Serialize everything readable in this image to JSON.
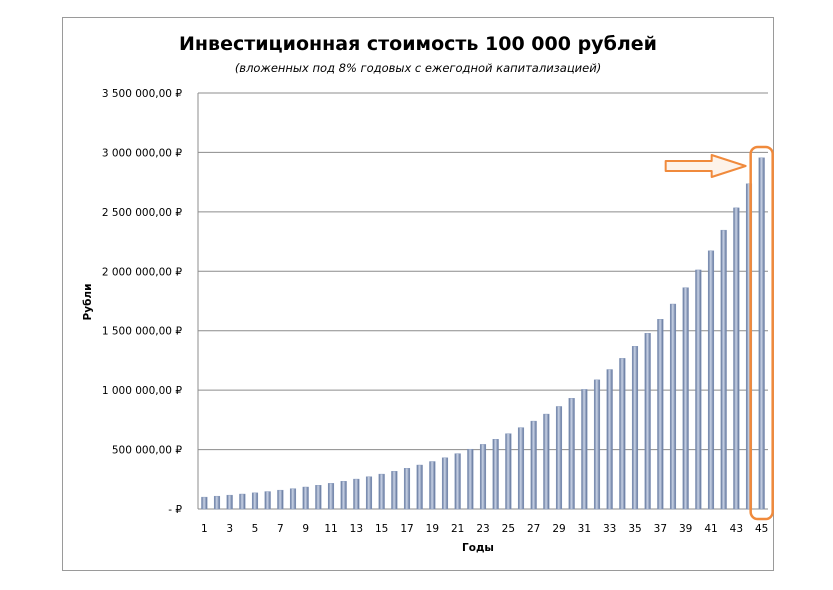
{
  "chart_data": {
    "type": "bar",
    "title": "Инвестиционная стоимость 100 000 рублей",
    "subtitle": "(вложенных под 8% годовых с ежегодной капитализацией)",
    "xlabel": "Годы",
    "ylabel": "Рубли",
    "ylim": [
      0,
      3500000
    ],
    "grid": true,
    "legend": "none",
    "bar_color": "#7f93b8",
    "highlight_color": "#f08a3c",
    "y_ticks": [
      {
        "value": 0,
        "label": "-   ₽"
      },
      {
        "value": 500000,
        "label": "500 000,00 ₽"
      },
      {
        "value": 1000000,
        "label": "1 000 000,00 ₽"
      },
      {
        "value": 1500000,
        "label": "1 500 000,00 ₽"
      },
      {
        "value": 2000000,
        "label": "2 000 000,00 ₽"
      },
      {
        "value": 2500000,
        "label": "2 500 000,00 ₽"
      },
      {
        "value": 3000000,
        "label": "3 000 000,00 ₽"
      },
      {
        "value": 3500000,
        "label": "3 500 000,00 ₽"
      }
    ],
    "x_tick_labels": [
      "1",
      "3",
      "5",
      "7",
      "9",
      "11",
      "13",
      "15",
      "17",
      "19",
      "21",
      "23",
      "25",
      "27",
      "29",
      "31",
      "33",
      "35",
      "37",
      "39",
      "41",
      "43",
      "45"
    ],
    "categories": [
      1,
      2,
      3,
      4,
      5,
      6,
      7,
      8,
      9,
      10,
      11,
      12,
      13,
      14,
      15,
      16,
      17,
      18,
      19,
      20,
      21,
      22,
      23,
      24,
      25,
      26,
      27,
      28,
      29,
      30,
      31,
      32,
      33,
      34,
      35,
      36,
      37,
      38,
      39,
      40,
      41,
      42,
      43,
      44,
      45
    ],
    "values": [
      100000,
      108000,
      116640,
      125971,
      136049,
      146933,
      158687,
      171382,
      185093,
      199900,
      215892,
      233164,
      251817,
      271962,
      293719,
      317217,
      342594,
      370002,
      399602,
      431570,
      466096,
      503383,
      543654,
      587146,
      634118,
      684848,
      739635,
      798806,
      862711,
      931727,
      1006266,
      1086767,
      1173708,
      1267605,
      1369013,
      1478534,
      1596817,
      1724562,
      1862527,
      2011529,
      2172452,
      2346248,
      2533948,
      2736664,
      2955597
    ],
    "annotation": "highlighted last bar with arrow"
  }
}
